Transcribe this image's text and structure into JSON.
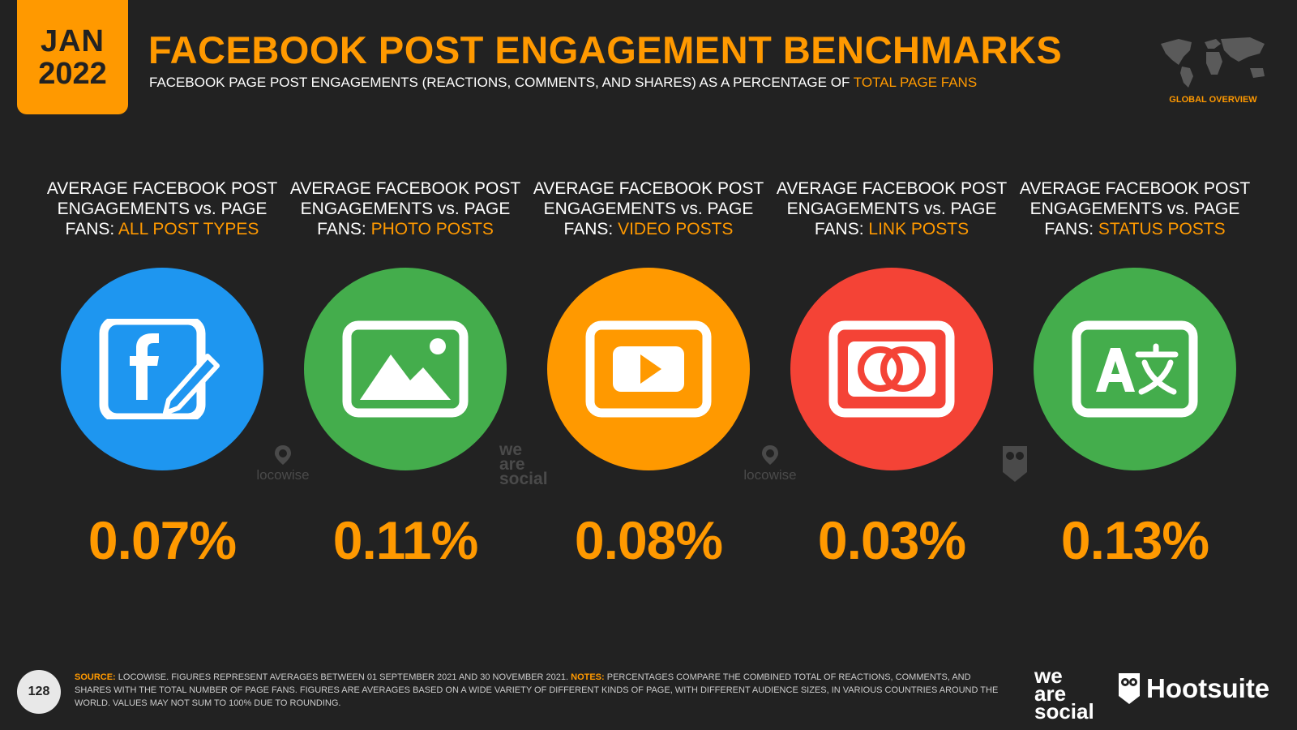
{
  "header": {
    "date_month": "JAN",
    "date_year": "2022",
    "title": "FACEBOOK POST ENGAGEMENT BENCHMARKS",
    "subtitle_prefix": "FACEBOOK PAGE POST ENGAGEMENTS (REACTIONS, COMMENTS, AND SHARES) AS A PERCENTAGE OF ",
    "subtitle_highlight": "TOTAL PAGE FANS",
    "section_label": "GLOBAL OVERVIEW"
  },
  "label_prefix": "AVERAGE FACEBOOK POST ENGAGEMENTS vs. PAGE FANS: ",
  "metrics": [
    {
      "highlight": "ALL POST TYPES",
      "value": "0.07%",
      "color": "#1e96f0",
      "icon": "facebook-edit-icon"
    },
    {
      "highlight": "PHOTO POSTS",
      "value": "0.11%",
      "color": "#44ad4c",
      "icon": "image-icon"
    },
    {
      "highlight": "VIDEO POSTS",
      "value": "0.08%",
      "color": "#ff9900",
      "icon": "video-play-icon"
    },
    {
      "highlight": "LINK POSTS",
      "value": "0.03%",
      "color": "#f44336",
      "icon": "link-rings-icon"
    },
    {
      "highlight": "STATUS POSTS",
      "value": "0.13%",
      "color": "#44ad4c",
      "icon": "translate-text-icon"
    }
  ],
  "watermarks": {
    "locowise": "locowise",
    "we": "we",
    "are": "are",
    "social": "social"
  },
  "footer": {
    "page_number": "128",
    "source_label": "SOURCE:",
    "source_text": " LOCOWISE. FIGURES REPRESENT AVERAGES BETWEEN 01 SEPTEMBER 2021 AND 30 NOVEMBER 2021. ",
    "notes_label": "NOTES:",
    "notes_text": " PERCENTAGES COMPARE THE COMBINED TOTAL OF REACTIONS, COMMENTS, AND SHARES WITH THE TOTAL NUMBER OF PAGE FANS. FIGURES ARE AVERAGES BASED ON A WIDE VARIETY OF DIFFERENT KINDS OF PAGE, WITH DIFFERENT AUDIENCE SIZES, IN VARIOUS COUNTRIES AROUND THE WORLD. VALUES MAY NOT SUM TO 100% DUE TO ROUNDING.",
    "brand_we": "we",
    "brand_are": "are",
    "brand_social": "social",
    "brand_hootsuite": "Hootsuite"
  },
  "colors": {
    "accent": "#ff9900",
    "background": "#222222"
  }
}
